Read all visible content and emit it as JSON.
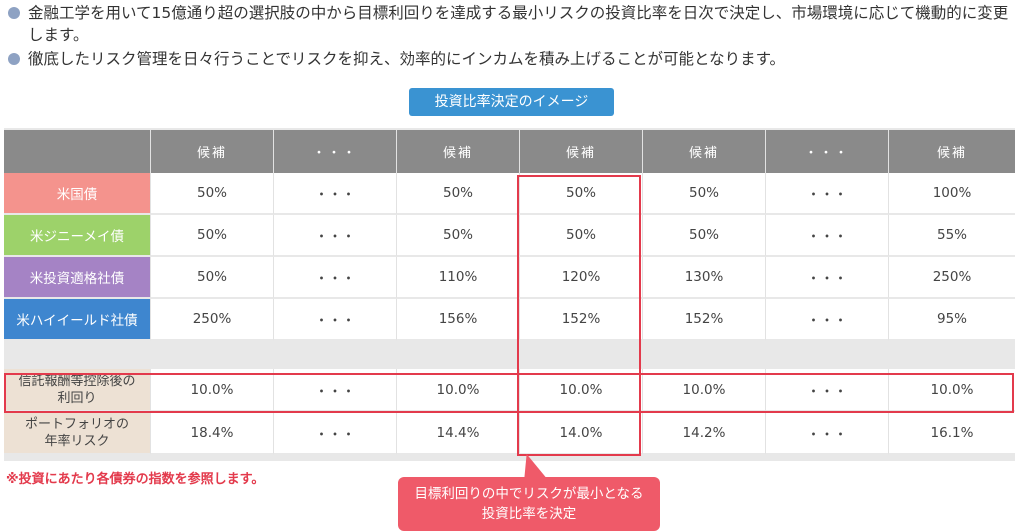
{
  "bullets": [
    "金融工学を用いて15億通り超の選択肢の中から目標利回りを達成する最小リスクの投資比率を日次で決定し、市場環境に応じて機動的に変更します。",
    "徹底したリスク管理を日々行うことでリスクを抑え、効率的にインカムを積み上げることが可能となります。"
  ],
  "caption": "投資比率決定のイメージ",
  "table": {
    "headers": [
      "",
      "候補",
      "・・・",
      "候補",
      "候補",
      "候補",
      "・・・",
      "候補"
    ],
    "rows": [
      {
        "label": "米国債",
        "values": [
          "50%",
          "・・・",
          "50%",
          "50%",
          "50%",
          "・・・",
          "100%"
        ]
      },
      {
        "label": "米ジニーメイ債",
        "values": [
          "50%",
          "・・・",
          "50%",
          "50%",
          "50%",
          "・・・",
          "55%"
        ]
      },
      {
        "label": "米投資適格社債",
        "values": [
          "50%",
          "・・・",
          "110%",
          "120%",
          "130%",
          "・・・",
          "250%"
        ]
      },
      {
        "label": "米ハイイールド社債",
        "values": [
          "250%",
          "・・・",
          "156%",
          "152%",
          "152%",
          "・・・",
          "95%"
        ]
      }
    ],
    "summary": [
      {
        "label": "信託報酬等控除後の\n利回り",
        "label_line1": "信託報酬等控除後の",
        "label_line2": "利回り",
        "values": [
          "10.0%",
          "・・・",
          "10.0%",
          "10.0%",
          "10.0%",
          "・・・",
          "10.0%"
        ]
      },
      {
        "label": "ポートフォリオの\n年率リスク",
        "label_line1": "ポートフォリオの",
        "label_line2": "年率リスク",
        "values": [
          "18.4%",
          "・・・",
          "14.4%",
          "14.0%",
          "14.2%",
          "・・・",
          "16.1%"
        ]
      }
    ]
  },
  "note": "※投資にあたり各債券の指数を参照します。",
  "callout": {
    "line1": "目標利回りの中でリスクが最小となる",
    "line2": "投資比率を決定"
  },
  "colors": {
    "us_treasury": "#f4938d",
    "ginnie_mae": "#9dd26a",
    "investment_grade": "#a583c5",
    "high_yield": "#3e86cf",
    "highlight": "#e33a4c",
    "caption_bg": "#3a93d2"
  }
}
